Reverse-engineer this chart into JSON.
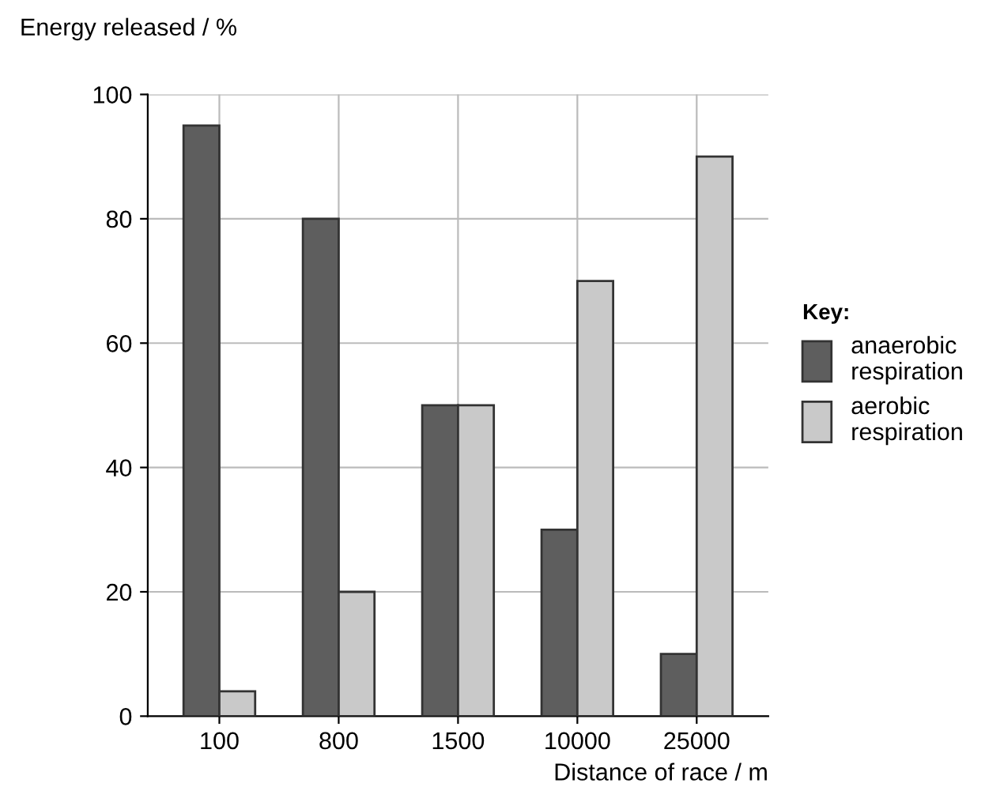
{
  "chart_data": {
    "type": "bar",
    "xlabel": "Distance of race / m",
    "ylabel": "Energy released / %",
    "legend_title": "Key:",
    "categories": [
      "100",
      "800",
      "1500",
      "10000",
      "25000"
    ],
    "series": [
      {
        "name": "anaerobic\nrespiration",
        "color": "#5e5e5e",
        "values": [
          95,
          80,
          50,
          30,
          10
        ]
      },
      {
        "name": "aerobic\nrespiration",
        "color": "#c9c9c9",
        "values": [
          4,
          20,
          50,
          70,
          90
        ]
      }
    ],
    "ylim": [
      0,
      100
    ],
    "yticks": [
      0,
      20,
      40,
      60,
      80,
      100
    ],
    "grid": true,
    "legend": "right"
  }
}
